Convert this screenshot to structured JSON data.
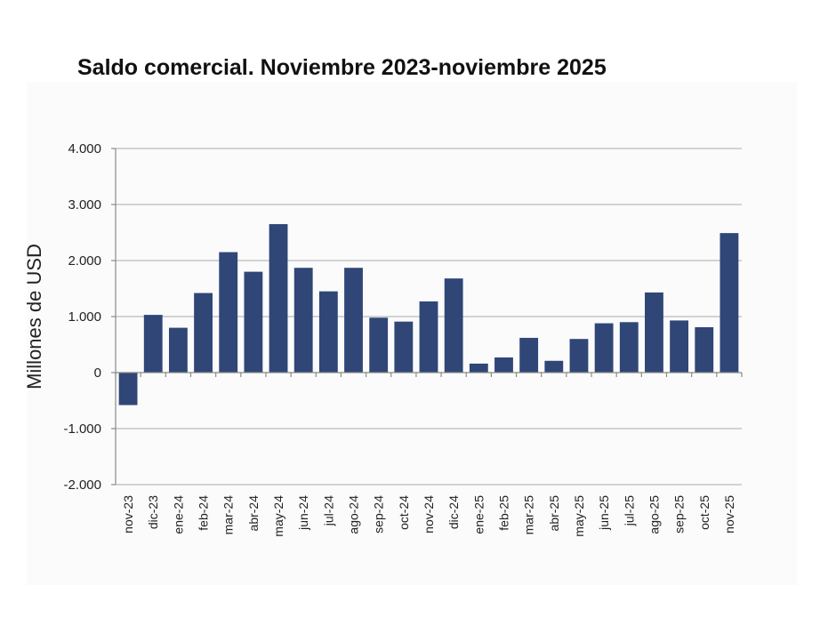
{
  "chart_data": {
    "type": "bar",
    "title": "Saldo comercial. Noviembre 2023-noviembre 2025",
    "xlabel": "",
    "ylabel": "Millones de USD",
    "ylim": [
      -2000,
      4000
    ],
    "yticks": [
      4000,
      3000,
      2000,
      1000,
      0,
      -1000,
      -2000
    ],
    "ytick_labels": [
      "4.000",
      "3.000",
      "2.000",
      "1.000",
      "0",
      "-1.000",
      "-2.000"
    ],
    "grid": true,
    "legend": "none",
    "bar_color": "#2f4677",
    "categories": [
      "nov-23",
      "dic-23",
      "ene-24",
      "feb-24",
      "mar-24",
      "abr-24",
      "may-24",
      "jun-24",
      "jul-24",
      "ago-24",
      "sep-24",
      "oct-24",
      "nov-24",
      "dic-24",
      "ene-25",
      "feb-25",
      "mar-25",
      "abr-25",
      "may-25",
      "jun-25",
      "jul-25",
      "ago-25",
      "sep-25",
      "oct-25",
      "nov-25"
    ],
    "values": [
      -580,
      1030,
      800,
      1420,
      2150,
      1800,
      2650,
      1870,
      1450,
      1870,
      980,
      910,
      1270,
      1680,
      160,
      270,
      620,
      210,
      600,
      880,
      900,
      1430,
      930,
      810,
      2490
    ]
  }
}
